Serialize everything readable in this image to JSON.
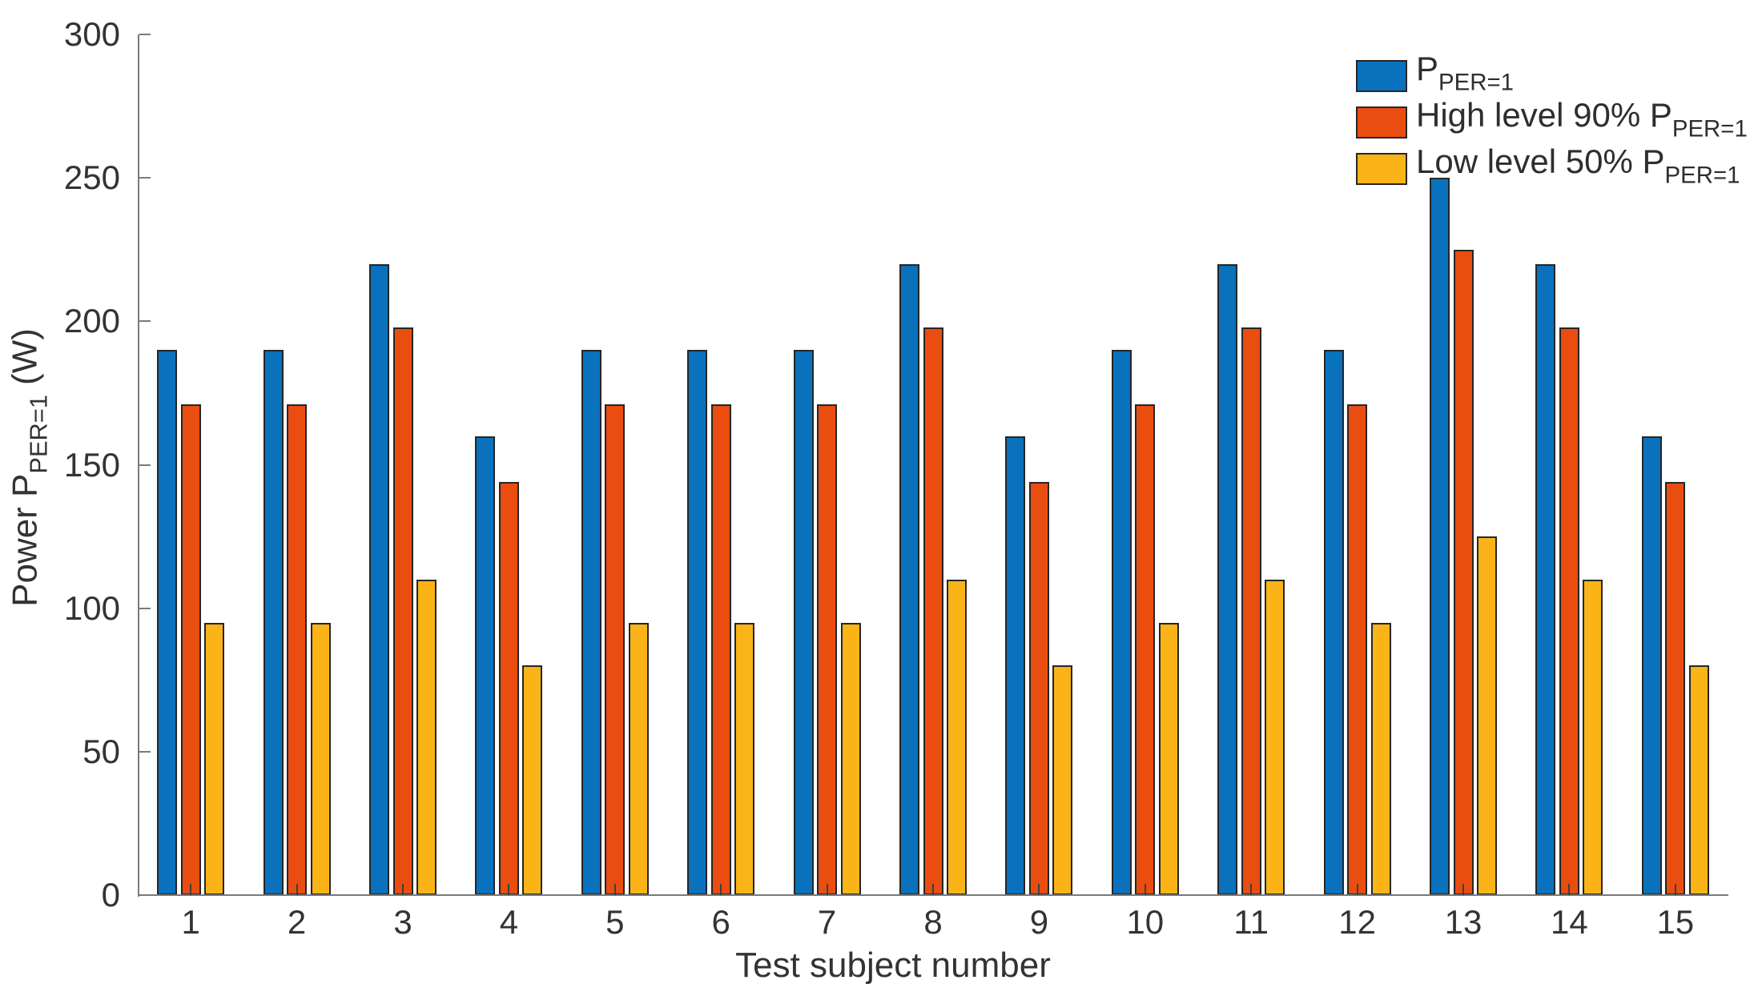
{
  "chart_data": {
    "type": "bar",
    "title": "",
    "xlabel": "Test subject number",
    "ylabel": "Power P_PER=1 (W)",
    "ylabel_parts": {
      "pre": "Power P",
      "sub": "PER=1",
      "post": " (W)"
    },
    "categories": [
      "1",
      "2",
      "3",
      "4",
      "5",
      "6",
      "7",
      "8",
      "9",
      "10",
      "11",
      "12",
      "13",
      "14",
      "15"
    ],
    "series": [
      {
        "name": "P PER=1",
        "label_pre": "P",
        "label_sub": "PER=1",
        "color": "#0A72BD",
        "values": [
          190,
          190,
          220,
          160,
          190,
          190,
          190,
          220,
          160,
          190,
          220,
          190,
          250,
          220,
          160
        ]
      },
      {
        "name": "High level 90% P PER=1",
        "label_pre": "High level 90% P",
        "label_sub": "PER=1",
        "color": "#E94D10",
        "values": [
          171,
          171,
          198,
          144,
          171,
          171,
          171,
          198,
          144,
          171,
          198,
          171,
          225,
          198,
          144
        ]
      },
      {
        "name": "Low level 50% P PER=1",
        "label_pre": "Low level 50% P",
        "label_sub": "PER=1",
        "color": "#FAB417",
        "values": [
          95,
          95,
          110,
          80,
          95,
          95,
          95,
          110,
          80,
          95,
          110,
          95,
          125,
          110,
          80
        ]
      }
    ],
    "ylim": [
      0,
      300
    ],
    "yticks": [
      0,
      50,
      100,
      150,
      200,
      250,
      300
    ],
    "grid": false,
    "legend_position": "top-right",
    "bar_edge_color": "#262626",
    "axis_color": "#7a7a7a",
    "xtick_mark_color": "#3f3f3f",
    "text_color": "#333333"
  }
}
